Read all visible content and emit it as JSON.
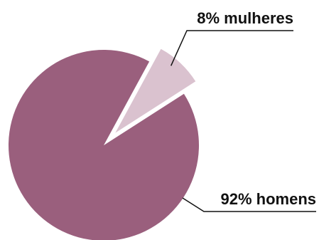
{
  "chart_data": {
    "type": "pie",
    "slices": [
      {
        "value": 92,
        "label": "92% homens",
        "color": "#9A5F7D",
        "exploded": false
      },
      {
        "value": 8,
        "label": "8% mulheres",
        "color": "#DAC2CF",
        "exploded": true
      }
    ],
    "title": "",
    "legend": "none"
  }
}
